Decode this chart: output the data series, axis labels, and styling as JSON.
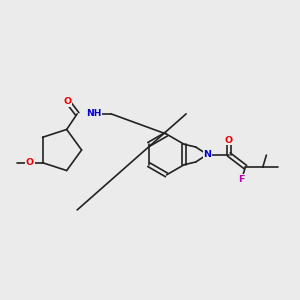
{
  "background_color": "#ebebeb",
  "bond_color": "#222222",
  "atom_colors": {
    "O": "#ee0000",
    "N_blue": "#0000cc",
    "F": "#bb00bb",
    "C": "#222222"
  },
  "figsize": [
    3.0,
    3.0
  ],
  "dpi": 100,
  "lw": 1.2,
  "fs": 6.8
}
